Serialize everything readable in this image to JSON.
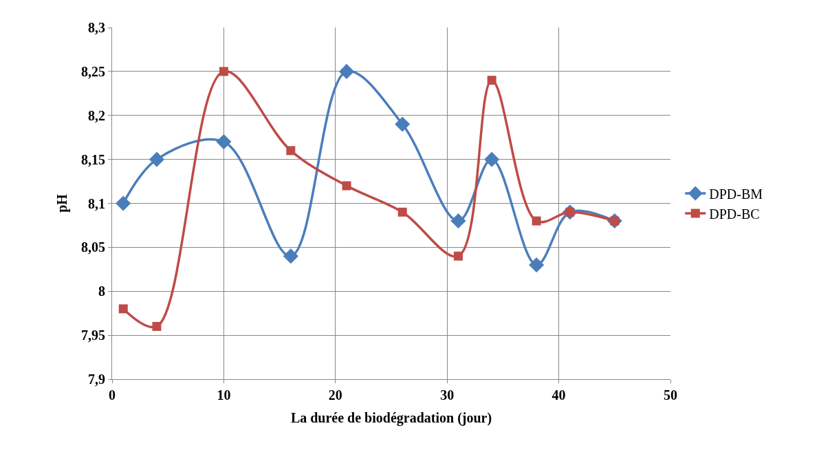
{
  "chart_data": {
    "type": "line",
    "xlabel": "La durée de biodégradation (jour)",
    "ylabel": "pH",
    "x": [
      1,
      4,
      10,
      16,
      21,
      26,
      31,
      34,
      38,
      41,
      45
    ],
    "series": [
      {
        "name": "DPD-BM",
        "color": "#4a7ebb",
        "marker": "diamond",
        "values": [
          8.1,
          8.15,
          8.17,
          8.04,
          8.25,
          8.19,
          8.08,
          8.15,
          8.03,
          8.09,
          8.08
        ]
      },
      {
        "name": "DPD-BC",
        "color": "#be4b48",
        "marker": "square",
        "values": [
          7.98,
          7.96,
          8.25,
          8.16,
          8.12,
          8.09,
          8.04,
          8.24,
          8.08,
          8.09,
          8.08
        ]
      }
    ],
    "xlim": [
      0,
      50
    ],
    "xticks": [
      0,
      10,
      20,
      30,
      40,
      50
    ],
    "ylim": [
      7.9,
      8.3
    ],
    "yticks": [
      {
        "value": 7.9,
        "label": "7,9"
      },
      {
        "value": 7.95,
        "label": "7,95"
      },
      {
        "value": 8,
        "label": "8"
      },
      {
        "value": 8.05,
        "label": "8,05"
      },
      {
        "value": 8.1,
        "label": "8,1"
      },
      {
        "value": 8.15,
        "label": "8,15"
      },
      {
        "value": 8.2,
        "label": "8,2"
      },
      {
        "value": 8.25,
        "label": "8,25"
      },
      {
        "value": 8.3,
        "label": "8,3"
      }
    ],
    "grid": true,
    "legend": "right"
  }
}
